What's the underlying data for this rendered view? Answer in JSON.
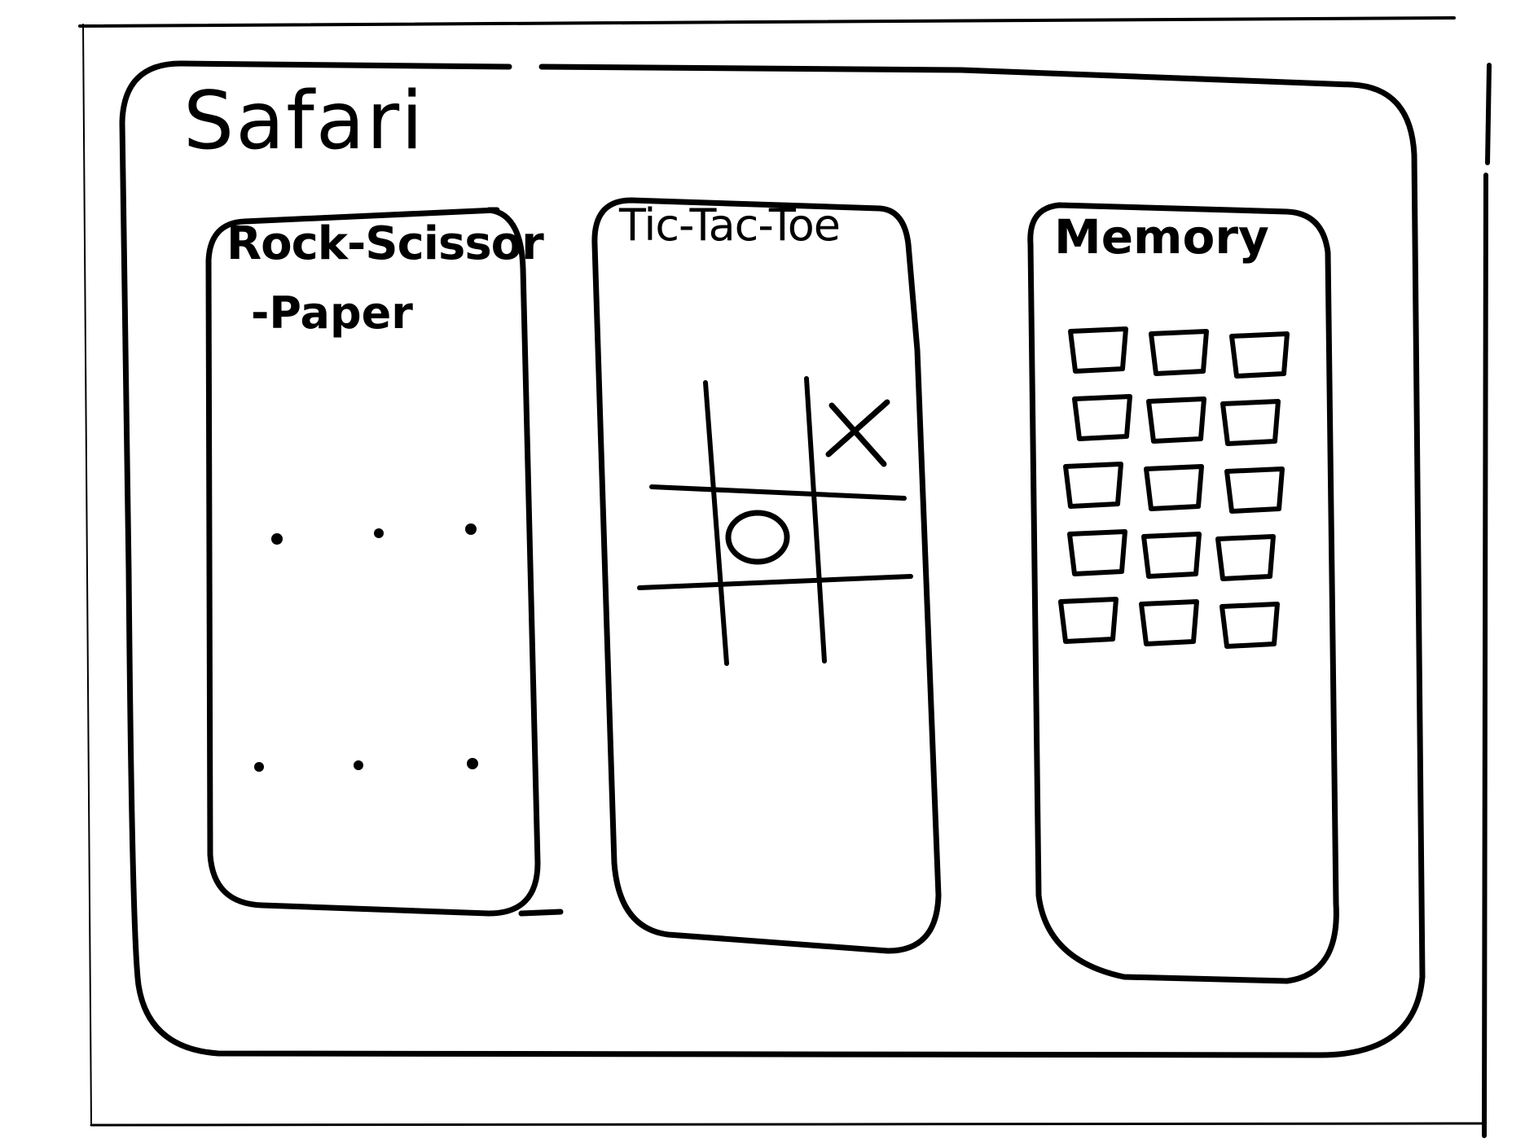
{
  "window": {
    "title": "Safari"
  },
  "games": [
    {
      "title": "Rock-Scissor",
      "title_line2": "-Paper"
    },
    {
      "title": "Tic-Tac-Toe"
    },
    {
      "title": "Memory"
    }
  ],
  "tic_tac_toe": {
    "board": [
      "",
      "",
      "X",
      "",
      "O",
      "",
      "",
      "",
      ""
    ]
  },
  "memory": {
    "rows": 5,
    "cols": 3
  }
}
